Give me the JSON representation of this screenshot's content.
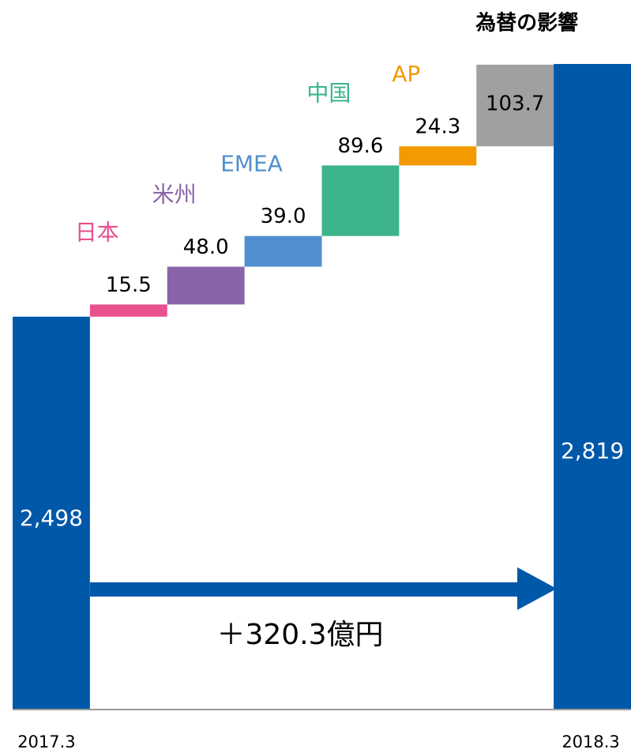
{
  "chart_data": {
    "type": "waterfall",
    "categories": [
      "2017.3",
      "日本",
      "米州",
      "EMEA",
      "中国",
      "AP",
      "為替の影響",
      "2018.3"
    ],
    "values": [
      2498,
      15.5,
      48.0,
      39.0,
      89.6,
      24.3,
      103.7,
      2819
    ],
    "value_labels": [
      "2,498",
      "15.5",
      "48.0",
      "39.0",
      "89.6",
      "24.3",
      "103.7",
      "2,819"
    ],
    "colors": [
      "#0058a9",
      "#e8508e",
      "#8a64a8",
      "#4f8fcf",
      "#3cb48a",
      "#f39a00",
      "#a0a0a0",
      "#0058a9"
    ],
    "label_colors": [
      "#000000",
      "#e8508e",
      "#8a64a8",
      "#4f8fcf",
      "#3cb48a",
      "#f39a00",
      "#000000",
      "#000000"
    ],
    "ylim": [
      2000,
      2830
    ],
    "annotation": "＋320.3億円"
  }
}
